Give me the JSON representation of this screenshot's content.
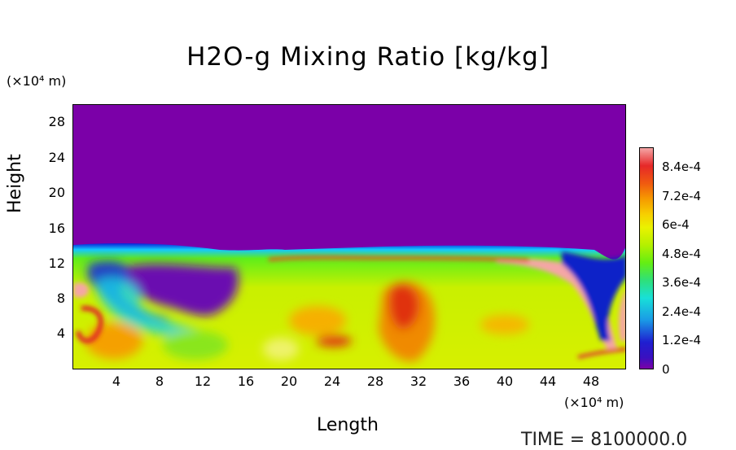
{
  "chart_data": {
    "type": "heatmap",
    "title": "H2O-g Mixing Ratio [kg/kg]",
    "xlabel": "Length",
    "ylabel": "Height",
    "x_unit": "(×10⁴ m)",
    "y_unit": "(×10⁴ m)",
    "xlim": [
      0,
      51.3
    ],
    "ylim": [
      0,
      30
    ],
    "x_ticks": [
      "4",
      "8",
      "12",
      "16",
      "20",
      "24",
      "28",
      "32",
      "36",
      "40",
      "44",
      "48"
    ],
    "y_ticks": [
      "4",
      "8",
      "12",
      "16",
      "20",
      "24",
      "28"
    ],
    "colorbar": {
      "min": 0,
      "max": 0.00092,
      "tick_labels": [
        "8.4e-4",
        "7.2e-4",
        "6e-4",
        "4.8e-4",
        "3.6e-4",
        "2.4e-4",
        "1.2e-4",
        "0"
      ],
      "tick_values": [
        0.00084,
        0.00072,
        0.0006,
        0.00048,
        0.00036,
        0.00024,
        0.00012,
        0
      ]
    },
    "colors": {
      "dry": "#7b00a8",
      "low": "#1f1fd0",
      "mid": "#64ee12",
      "high_yellow": "#eaf200",
      "orange": "#f69a00",
      "red": "#e62828",
      "pink": "#f5a6a6"
    }
  },
  "footer": {
    "time_label": "TIME = 8100000.0"
  }
}
